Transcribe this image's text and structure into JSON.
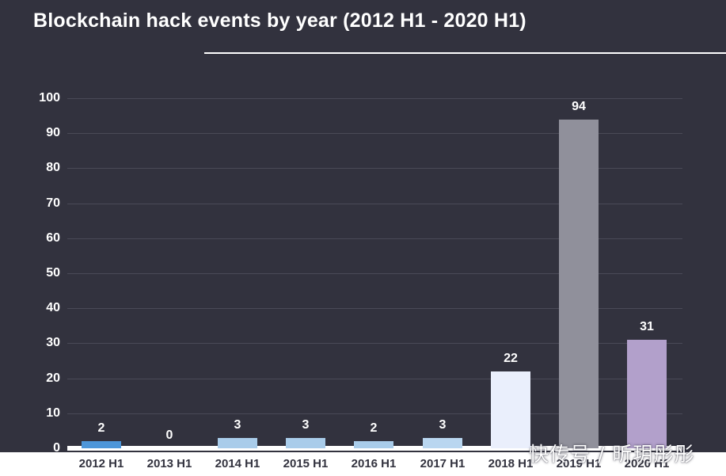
{
  "title": "Blockchain hack events by year (2012 H1 - 2020 H1)",
  "watermark": "快传号 / 昕玥彤彤",
  "colors": {
    "background": "#32323E",
    "gridline": "#4A4A57",
    "axis": "#FFFFFF",
    "text": "#FFFFFF",
    "x_strip_background": "#FFFFFF",
    "x_label_text": "#32323E"
  },
  "chart_data": {
    "type": "bar",
    "title": "Blockchain hack events by year (2012 H1 - 2020 H1)",
    "categories": [
      "2012 H1",
      "2013 H1",
      "2014 H1",
      "2015 H1",
      "2016 H1",
      "2017 H1",
      "2018 H1",
      "2019 H1",
      "2020 H1"
    ],
    "values": [
      2,
      0,
      3,
      3,
      2,
      3,
      22,
      94,
      31
    ],
    "bar_colors": [
      "#4D96D9",
      "#A9CCEA",
      "#A9CCEA",
      "#A9CCEA",
      "#A9CCEA",
      "#B9D6F0",
      "#EAEFFC",
      "#90909B",
      "#B2A0CB"
    ],
    "xlabel": "",
    "ylabel": "",
    "ylim": [
      0,
      100
    ],
    "yticks": [
      0,
      10,
      20,
      30,
      40,
      50,
      60,
      70,
      80,
      90,
      100
    ],
    "grid": true,
    "legend": false
  }
}
